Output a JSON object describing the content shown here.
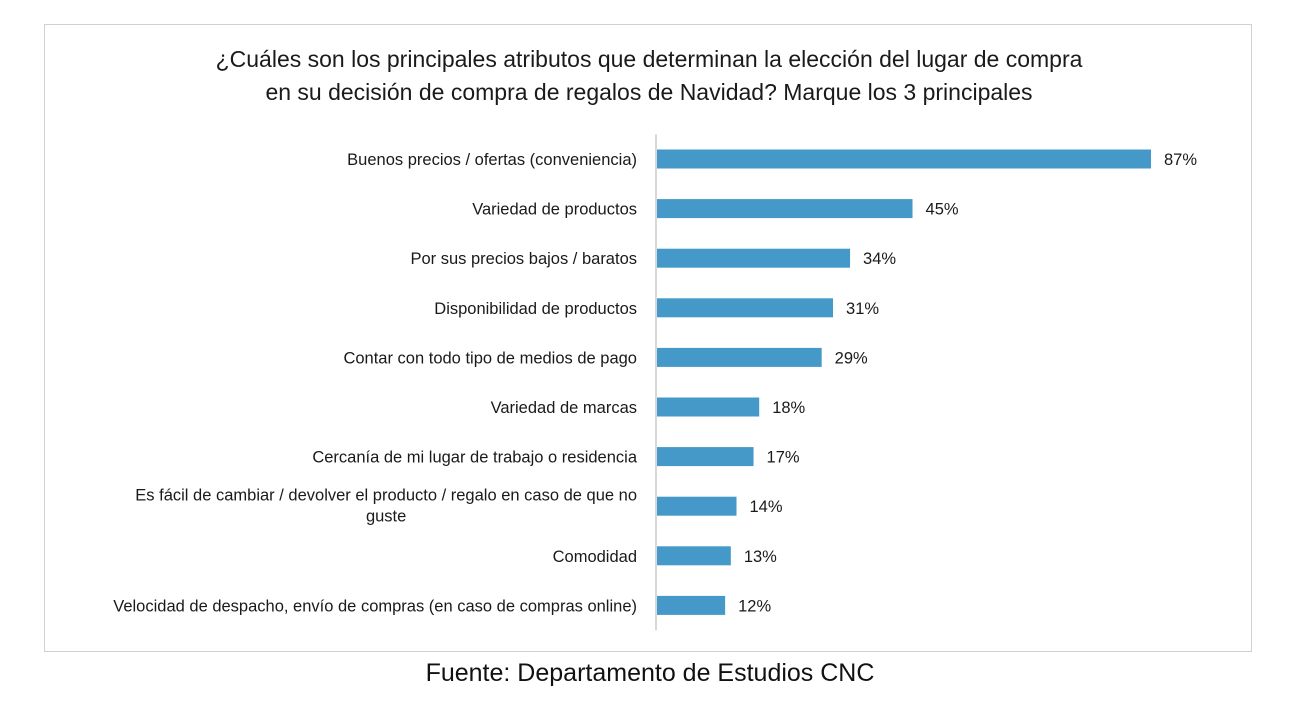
{
  "chart_data": {
    "type": "bar",
    "orientation": "horizontal",
    "title_lines": [
      "¿Cuáles son los principales atributos que determinan la elección del lugar de compra",
      "en su decisión de compra de regalos de Navidad? Marque los 3 principales"
    ],
    "categories": [
      "Buenos precios / ofertas (conveniencia)",
      "Variedad de productos",
      "Por sus precios bajos / baratos",
      "Disponibilidad de productos",
      "Contar con todo tipo de medios de pago",
      "Variedad de marcas",
      "Cercanía de mi lugar de trabajo o residencia",
      [
        "Es fácil de cambiar / devolver el producto / regalo en caso de que no",
        "guste"
      ],
      "Comodidad",
      "Velocidad de despacho, envío de compras (en caso de compras online)"
    ],
    "values": [
      87,
      45,
      34,
      31,
      29,
      18,
      17,
      14,
      13,
      12
    ],
    "value_labels": [
      "87%",
      "45%",
      "34%",
      "31%",
      "29%",
      "18%",
      "17%",
      "14%",
      "13%",
      "12%"
    ],
    "unit": "%",
    "xlim": [
      0,
      87
    ],
    "xlabel": "",
    "ylabel": "",
    "grid": false,
    "legend": "none",
    "bar_color": "#4599c8",
    "axis_color": "#bfbfbf"
  },
  "source": "Fuente: Departamento de Estudios CNC"
}
